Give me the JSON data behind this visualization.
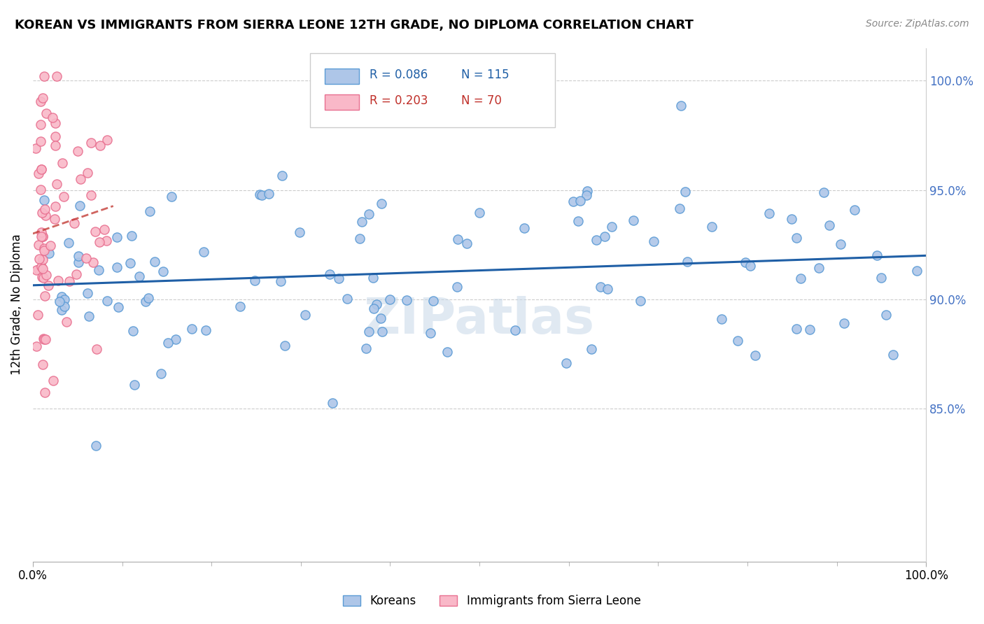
{
  "title": "KOREAN VS IMMIGRANTS FROM SIERRA LEONE 12TH GRADE, NO DIPLOMA CORRELATION CHART",
  "source": "Source: ZipAtlas.com",
  "ylabel": "12th Grade, No Diploma",
  "legend_korean_R": "R = 0.086",
  "legend_korean_N": "N = 115",
  "legend_sierra_R": "R = 0.203",
  "legend_sierra_N": "N = 70",
  "korean_color": "#aec6e8",
  "korean_edge": "#5b9bd5",
  "sierra_color": "#f9b8c8",
  "sierra_edge": "#e87090",
  "trend_korean_color": "#1f5fa6",
  "trend_sierra_color": "#c0302a",
  "watermark": "ZIPatlas",
  "yticks": [
    0.85,
    0.9,
    0.95,
    1.0
  ],
  "ytick_labels": [
    "85.0%",
    "90.0%",
    "95.0%",
    "100.0%"
  ],
  "ylim": [
    0.78,
    1.015
  ],
  "xlim": [
    0.0,
    1.0
  ]
}
